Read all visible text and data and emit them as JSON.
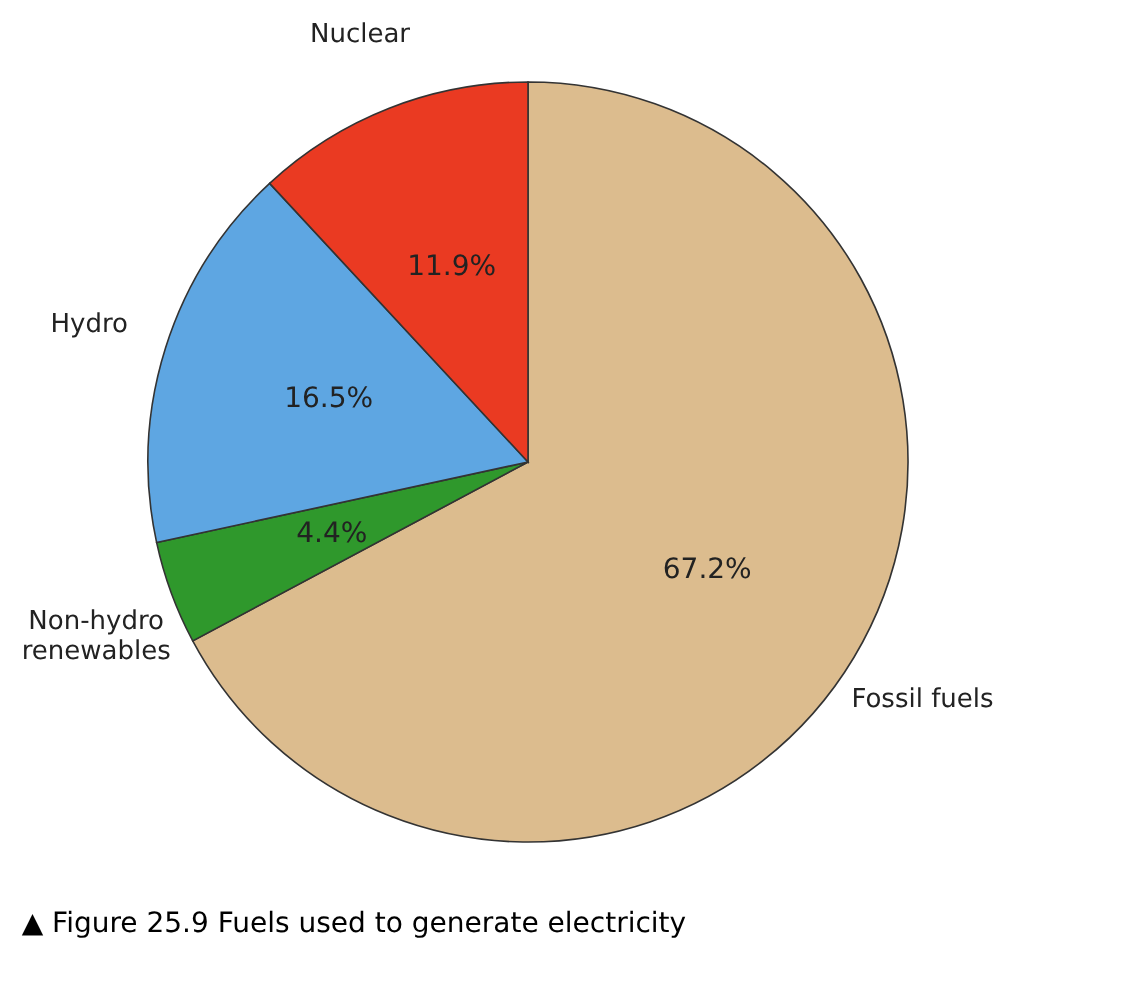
{
  "chart_data": {
    "type": "pie",
    "categories": [
      "Fossil fuels",
      "Non-hydro\nrenewables",
      "Hydro",
      "Nuclear"
    ],
    "values": [
      67.2,
      4.4,
      16.5,
      11.9
    ],
    "value_labels": [
      "67.2%",
      "4.4%",
      "16.5%",
      "11.9%"
    ],
    "colors": [
      "#dcbc8e",
      "#2f982c",
      "#5ea6e2",
      "#ea3a22"
    ],
    "legend": false,
    "annotations": [
      "▲ Figure 25.9 Fuels used to generate electricity"
    ]
  }
}
